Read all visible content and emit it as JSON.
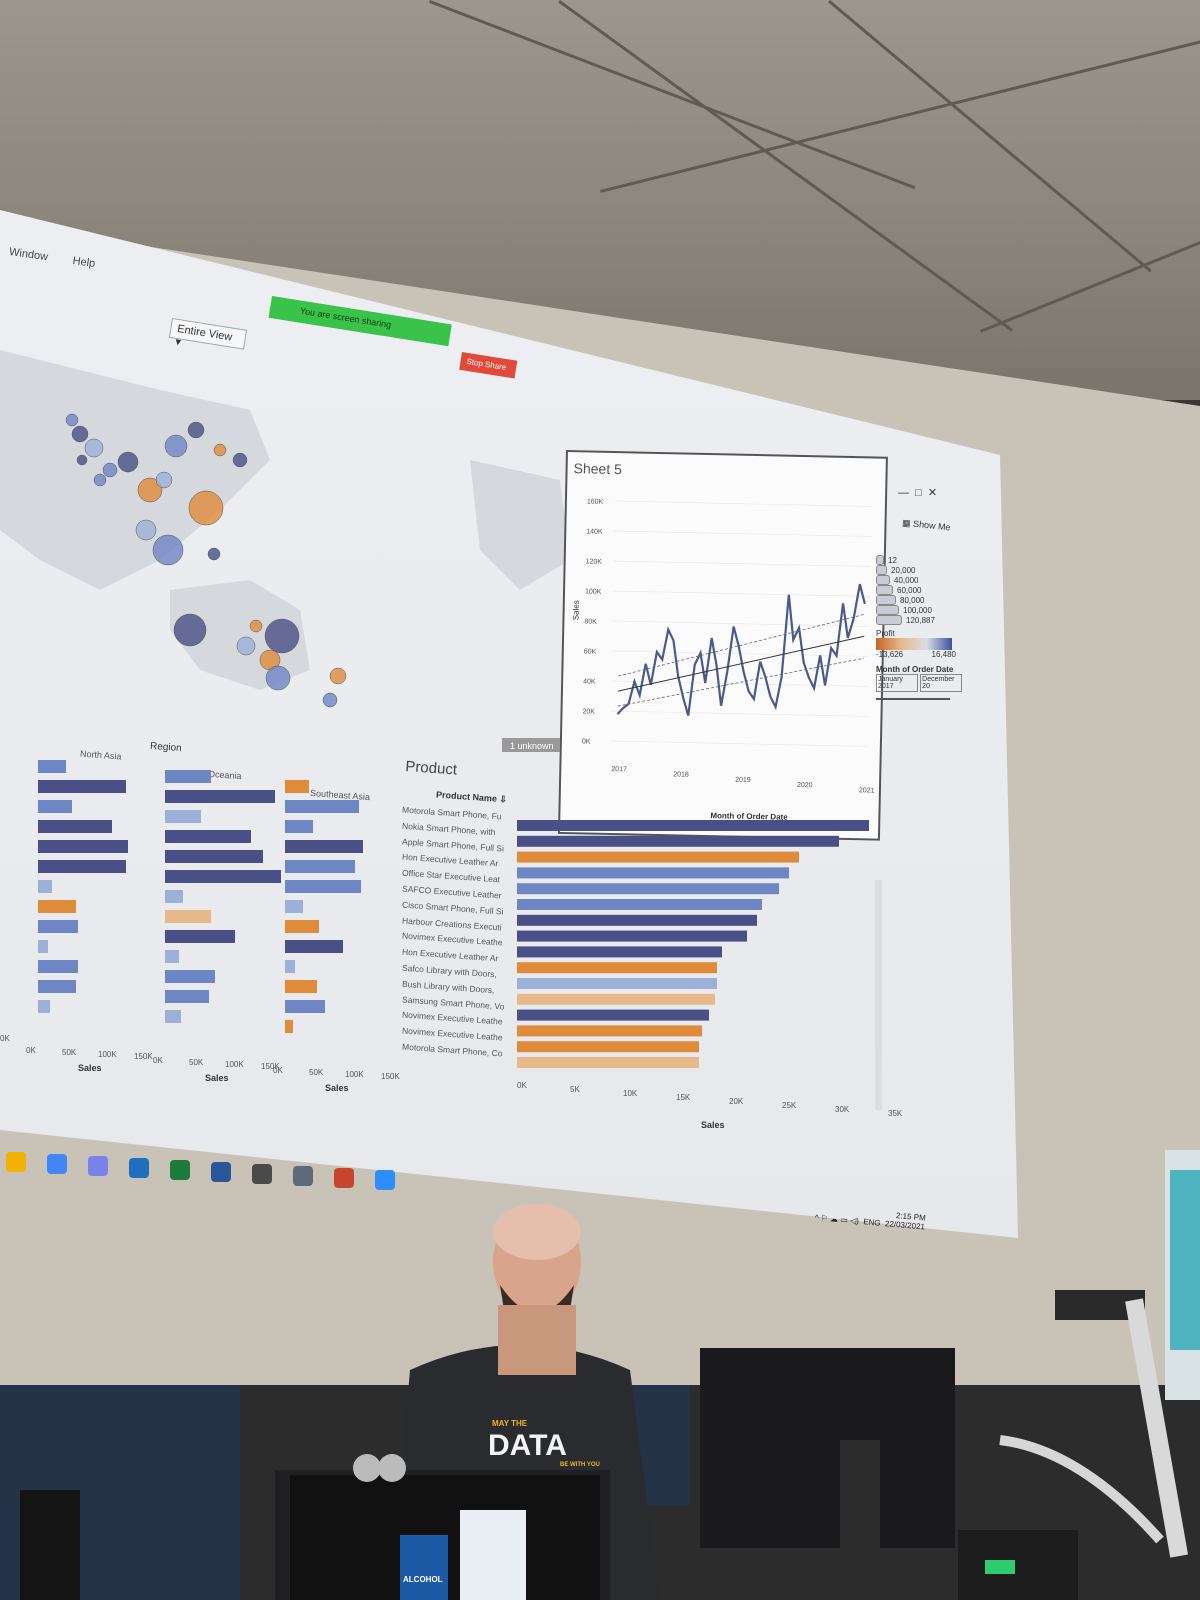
{
  "menu": {
    "items": [
      "Window",
      "Help"
    ]
  },
  "toolbar": {
    "view_select": "Entire View"
  },
  "screen_share": {
    "status": "You are screen sharing",
    "stop_label": "Stop Share"
  },
  "sheet5": {
    "title": "Sheet 5",
    "show_me": "Show Me",
    "y_ticks": [
      "160K",
      "140K",
      "120K",
      "100K",
      "80K",
      "60K",
      "40K",
      "20K",
      "0K"
    ],
    "y_label": "Sales",
    "x_ticks": [
      "2017",
      "2018",
      "2019",
      "2020",
      "2021"
    ],
    "x_label": "Month of Order Date"
  },
  "legend": {
    "size_values": [
      "12",
      "20,000",
      "40,000",
      "60,000",
      "80,000",
      "100,000",
      "120,887"
    ],
    "profit_title": "Profit",
    "profit_min": "-13,626",
    "profit_max": "16,480",
    "filter_title": "Month of Order Date",
    "filter_start": "January 2017",
    "filter_end": "December 20"
  },
  "map": {
    "unknown_badge": "1 unknown"
  },
  "region_chart": {
    "title": "Region",
    "columns": [
      "North Asia",
      "Oceania",
      "Southeast Asia"
    ],
    "axis_ticks": [
      "0K",
      "50K",
      "100K",
      "150K"
    ],
    "axis_label": "Sales",
    "left_edge_tick": "0K"
  },
  "product_chart": {
    "title": "Product",
    "column_header": "Product Name",
    "axis_label": "Sales",
    "axis_ticks": [
      "0K",
      "5K",
      "10K",
      "15K",
      "20K",
      "25K",
      "30K",
      "35K"
    ],
    "products": [
      "Motorola Smart Phone, Fu",
      "Nokia Smart Phone, with",
      "Apple Smart Phone, Full Si",
      "Hon Executive Leather Ar",
      "Office Star Executive Leat",
      "SAFCO Executive Leather",
      "Cisco Smart Phone, Full Si",
      "Harbour Creations Executi",
      "Novimex Executive Leathe",
      "Hon Executive Leather Ar",
      "Safco Library with Doors,",
      "Bush Library with Doors,",
      "Samsung Smart Phone, Vo",
      "Novimex Executive Leathe",
      "Novimex Executive Leathe",
      "Motorola Smart Phone, Co"
    ]
  },
  "taskbar": {
    "language": "ENG",
    "time": "2:15 PM",
    "date": "22/03/2021"
  },
  "shirt": {
    "line1": "MAY THE",
    "line2": "DATA",
    "line3": "BE WITH YOU"
  },
  "bottle": {
    "label": "ALCOHOL"
  },
  "colors": {
    "orange": "#e08b3a",
    "blue_dark": "#4a4f86",
    "blue_mid": "#6f86c4",
    "blue_light": "#9cb0d8",
    "beige": "#e6b98b",
    "share_green": "#39c34a",
    "stop_red": "#e04a3b"
  }
}
